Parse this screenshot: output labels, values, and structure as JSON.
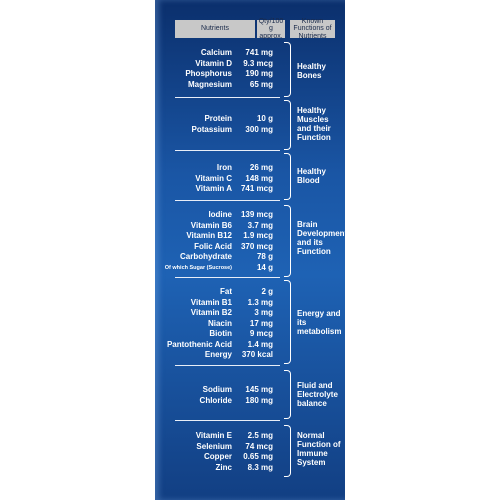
{
  "header": {
    "nutrients": "Nutrients",
    "qty": "Qty/100 g approx.",
    "functions": "Known Functions of Nutrients"
  },
  "groups": [
    {
      "items": [
        {
          "name": "Calcium",
          "qty": "741 mg"
        },
        {
          "name": "Vitamin D",
          "qty": "9.3 mcg"
        },
        {
          "name": "Phosphorus",
          "qty": "190 mg"
        },
        {
          "name": "Magnesium",
          "qty": "65 mg"
        }
      ],
      "function": "Healthy Bones"
    },
    {
      "items": [
        {
          "name": "Protein",
          "qty": "10 g"
        },
        {
          "name": "Potassium",
          "qty": "300 mg"
        }
      ],
      "function": "Healthy Muscles and their Function"
    },
    {
      "items": [
        {
          "name": "Iron",
          "qty": "26 mg"
        },
        {
          "name": "Vitamin C",
          "qty": "148 mg"
        },
        {
          "name": "Vitamin A",
          "qty": "741 mcg"
        }
      ],
      "function": "Healthy Blood"
    },
    {
      "items": [
        {
          "name": "Iodine",
          "qty": "139 mcg"
        },
        {
          "name": "Vitamin B6",
          "qty": "3.7 mg"
        },
        {
          "name": "Vitamin B12",
          "qty": "1.9 mcg"
        },
        {
          "name": "Folic Acid",
          "qty": "370 mcg"
        },
        {
          "name": "Carbohydrate",
          "qty": "78 g"
        },
        {
          "name": "Of which Sugar (Sucrose)",
          "qty": "14 g"
        }
      ],
      "function": "Brain Development and its Function"
    },
    {
      "items": [
        {
          "name": "Fat",
          "qty": "2 g"
        },
        {
          "name": "Vitamin B1",
          "qty": "1.3 mg"
        },
        {
          "name": "Vitamin B2",
          "qty": "3 mg"
        },
        {
          "name": "Niacin",
          "qty": "17 mg"
        },
        {
          "name": "Biotin",
          "qty": "9 mcg"
        },
        {
          "name": "Pantothenic Acid",
          "qty": "1.4 mg"
        },
        {
          "name": "Energy",
          "qty": "370 kcal"
        }
      ],
      "function": "Energy and its metabolism"
    },
    {
      "items": [
        {
          "name": "Sodium",
          "qty": "145 mg"
        },
        {
          "name": "Chloride",
          "qty": "180 mg"
        }
      ],
      "function": "Fluid and Electrolyte balance"
    },
    {
      "items": [
        {
          "name": "Vitamin E",
          "qty": "2.5 mg"
        },
        {
          "name": "Selenium",
          "qty": "74 mcg"
        },
        {
          "name": "Copper",
          "qty": "0.65 mg"
        },
        {
          "name": "Zinc",
          "qty": "8.3 mg"
        }
      ],
      "function": "Normal Function of Immune System"
    }
  ]
}
